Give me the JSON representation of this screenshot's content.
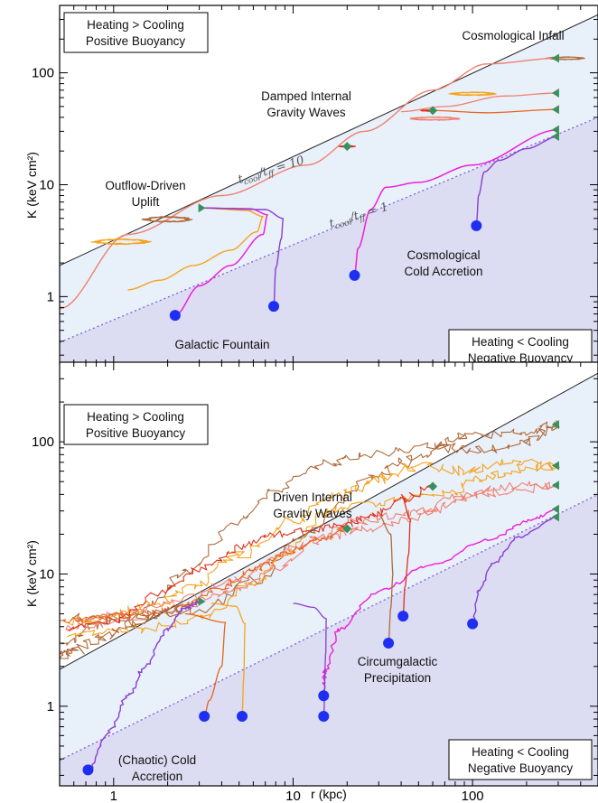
{
  "chart_data": [
    {
      "type": "line",
      "panel": "top",
      "xlabel": "",
      "ylabel": "K (keV cm²)",
      "xscale": "log",
      "yscale": "log",
      "xlim": [
        0.5,
        500
      ],
      "ylim": [
        0.25,
        400
      ],
      "x_ticks": [
        {
          "v": 1,
          "label": "1"
        },
        {
          "v": 10,
          "label": "10"
        },
        {
          "v": 100,
          "label": "100"
        }
      ],
      "y_ticks": [
        {
          "v": 1,
          "label": "1"
        },
        {
          "v": 10,
          "label": "10"
        },
        {
          "v": 100,
          "label": "100"
        }
      ],
      "reference_lines": [
        {
          "label": "t_cool/t_ff = 10",
          "ratio_text": "t",
          "sub1": "cool",
          "slash": "/t",
          "sub2": "ff",
          "eq": " = 10",
          "points": [
            [
              0.5,
              1.9
            ],
            [
              500,
              330
            ]
          ]
        },
        {
          "label": "t_cool/t_ff = 1",
          "ratio_text": "t",
          "sub1": "cool",
          "slash": "/t",
          "sub2": "ff",
          "eq": " = 1",
          "points": [
            [
              0.5,
              0.39
            ],
            [
              500,
              40
            ]
          ]
        }
      ],
      "regions": [
        {
          "label": "Heating > Cooling / Positive Buoyancy",
          "color": "#e8f0fa"
        },
        {
          "label": "Heating < Cooling / Negative Buoyancy",
          "color": "#dcdcf2"
        }
      ],
      "box_top": [
        "Heating > Cooling",
        "Positive Buoyancy"
      ],
      "box_bottom": [
        "Heating < Cooling",
        "Negative Buoyancy"
      ],
      "annotations": [
        {
          "lines": [
            "Cosmological Infall"
          ]
        },
        {
          "lines": [
            "Damped Internal",
            "Gravity Waves"
          ]
        },
        {
          "lines": [
            "Outflow-Driven",
            "Uplift"
          ]
        },
        {
          "lines": [
            "Cosmological",
            "Cold Accretion"
          ]
        },
        {
          "lines": [
            "Galactic Fountain"
          ]
        }
      ],
      "start_markers": [
        {
          "r": 3,
          "K": 6.2
        },
        {
          "r": 20,
          "K": 22
        },
        {
          "r": 60,
          "K": 46
        },
        {
          "r": 300,
          "K": 27
        },
        {
          "r": 300,
          "K": 31
        },
        {
          "r": 300,
          "K": 47
        },
        {
          "r": 300,
          "K": 66
        },
        {
          "r": 300,
          "K": 135
        }
      ],
      "end_points": [
        {
          "r": 2.2,
          "K": 0.68
        },
        {
          "r": 7.8,
          "K": 0.82
        },
        {
          "r": 22,
          "K": 1.55
        },
        {
          "r": 105,
          "K": 4.3
        }
      ],
      "colors": {
        "magenta": "#ee1fd9",
        "purple": "#8a3fd1",
        "orange": "#f6a21b",
        "salmon": "#f08070",
        "red": "#e0301e",
        "brown": "#b06a3a",
        "dark_orange": "#e8641b",
        "marker": "#3b8f5a",
        "dot": "#1f2ff2"
      }
    },
    {
      "type": "line",
      "panel": "bottom",
      "xlabel": "r (kpc)",
      "ylabel": "K (keV cm²)",
      "xscale": "log",
      "yscale": "log",
      "xlim": [
        0.5,
        500
      ],
      "ylim": [
        0.25,
        400
      ],
      "x_ticks": [
        {
          "v": 1,
          "label": "1"
        },
        {
          "v": 10,
          "label": "10"
        },
        {
          "v": 100,
          "label": "100"
        }
      ],
      "y_ticks": [
        {
          "v": 1,
          "label": "1"
        },
        {
          "v": 10,
          "label": "10"
        },
        {
          "v": 100,
          "label": "100"
        }
      ],
      "box_top": [
        "Heating > Cooling",
        "Positive Buoyancy"
      ],
      "box_bottom": [
        "Heating < Cooling",
        "Negative Buoyancy"
      ],
      "annotations": [
        {
          "lines": [
            "Driven Internal",
            "Gravity Waves"
          ]
        },
        {
          "lines": [
            "Circumgalactic",
            "Precipitation"
          ]
        },
        {
          "lines": [
            "(Chaotic) Cold",
            "Accretion"
          ]
        }
      ],
      "start_markers": [
        {
          "r": 3,
          "K": 6.2
        },
        {
          "r": 20,
          "K": 22
        },
        {
          "r": 60,
          "K": 46
        },
        {
          "r": 300,
          "K": 27
        },
        {
          "r": 300,
          "K": 31
        },
        {
          "r": 300,
          "K": 47
        },
        {
          "r": 300,
          "K": 66
        },
        {
          "r": 300,
          "K": 135
        }
      ],
      "end_points": [
        {
          "r": 0.72,
          "K": 0.33
        },
        {
          "r": 3.2,
          "K": 0.84
        },
        {
          "r": 5.2,
          "K": 0.84
        },
        {
          "r": 14.8,
          "K": 0.84
        },
        {
          "r": 14.8,
          "K": 1.2
        },
        {
          "r": 34,
          "K": 3.0
        },
        {
          "r": 41,
          "K": 4.8
        },
        {
          "r": 100,
          "K": 4.2
        }
      ]
    }
  ]
}
